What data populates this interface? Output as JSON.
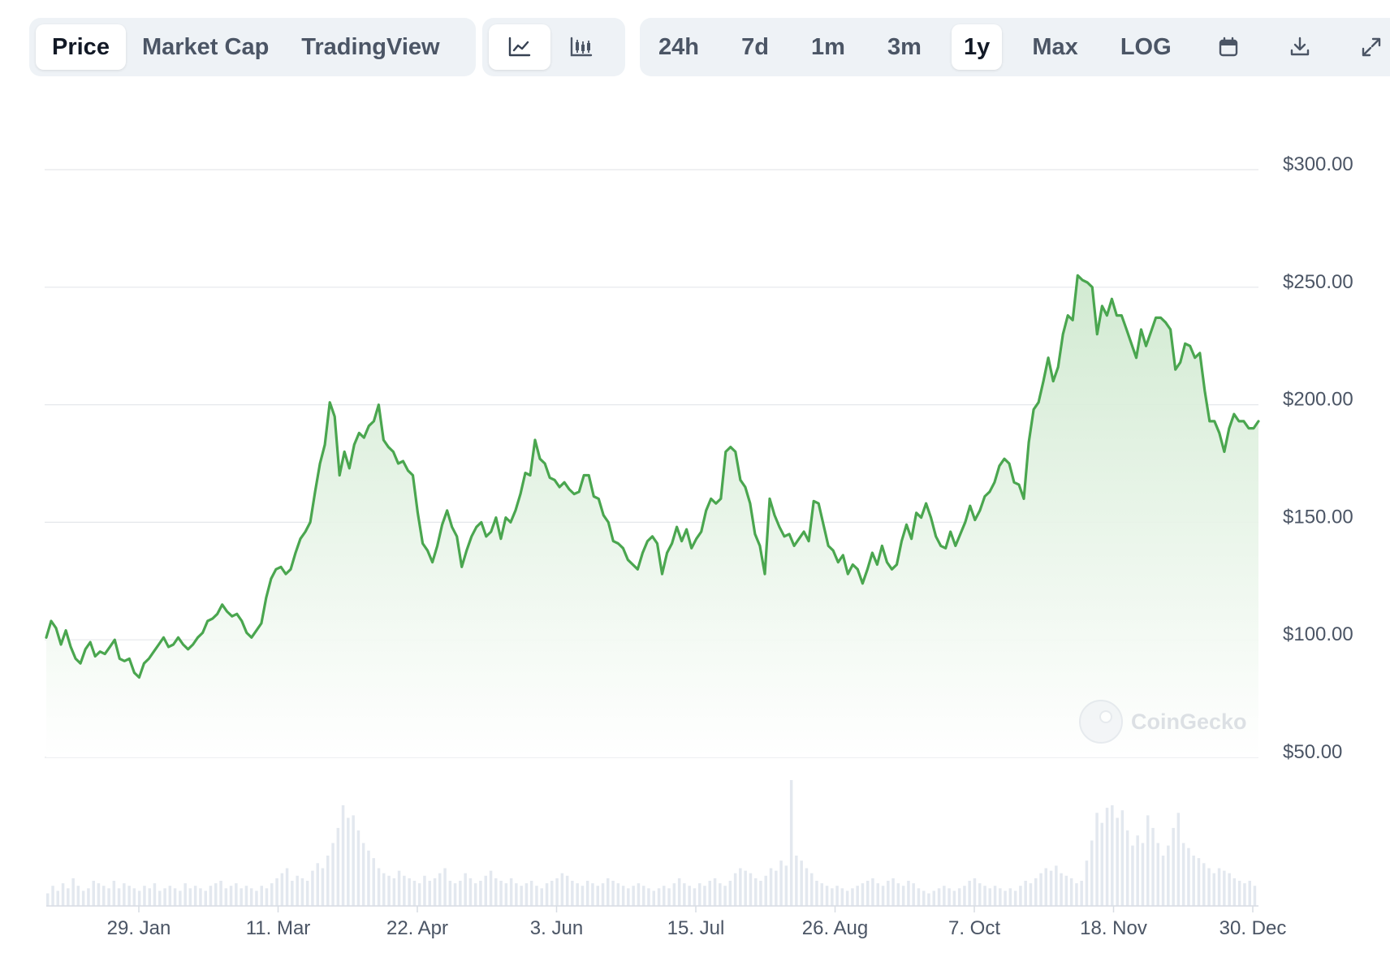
{
  "toolbar": {
    "view_tabs": [
      "Price",
      "Market Cap",
      "TradingView"
    ],
    "active_view": "Price",
    "chart_type_icons": [
      "line-chart-icon",
      "candlestick-chart-icon"
    ],
    "active_chart_type": "line-chart-icon",
    "ranges": [
      "24h",
      "7d",
      "1m",
      "3m",
      "1y",
      "Max",
      "LOG"
    ],
    "active_range": "1y",
    "action_icons": [
      "calendar-icon",
      "download-icon",
      "fullscreen-icon"
    ]
  },
  "watermark": "CoinGecko",
  "colors": {
    "line": "#4aa64f",
    "fill": "#d6eed6",
    "volume": "#e3e8ef",
    "grid": "#e5e7eb",
    "axis_text": "#4b5565"
  },
  "chart_data": {
    "type": "area",
    "title": "",
    "xlabel": "",
    "ylabel": "",
    "y_tick_labels": [
      "$300.00",
      "$250.00",
      "$200.00",
      "$150.00",
      "$100.00",
      "$50.00"
    ],
    "y_ticks": [
      300,
      250,
      200,
      150,
      100,
      50
    ],
    "ylim": [
      50,
      300
    ],
    "x_tick_labels": [
      "29. Jan",
      "11. Mar",
      "22. Apr",
      "3. Jun",
      "15. Jul",
      "26. Aug",
      "7. Oct",
      "18. Nov",
      "30. Dec"
    ],
    "x_range": [
      "2024-01-01",
      "2024-12-31"
    ],
    "grid": true,
    "series": [
      {
        "values": [
          101,
          108,
          105,
          98,
          104,
          97,
          92,
          90,
          96,
          99,
          93,
          95,
          94,
          97,
          100,
          92,
          91,
          92,
          86,
          84,
          90,
          92,
          95,
          98,
          101,
          97,
          98,
          101,
          98,
          96,
          98,
          101,
          103,
          108,
          109,
          111,
          115,
          112,
          110,
          111,
          108,
          103,
          101,
          104,
          107,
          118,
          126,
          130,
          131,
          128,
          130,
          137,
          143,
          146,
          150,
          163,
          175,
          183,
          201,
          195,
          170,
          180,
          173,
          183,
          188,
          186,
          191,
          193,
          200,
          185,
          182,
          180,
          175,
          176,
          172,
          170,
          154,
          141,
          138,
          133,
          140,
          149,
          155,
          148,
          144,
          131,
          138,
          144,
          148,
          150,
          144,
          146,
          152,
          143,
          152,
          150,
          155,
          162,
          171,
          170,
          185,
          177,
          175,
          169,
          168,
          165,
          167,
          164,
          162,
          163,
          170,
          170,
          161,
          160,
          153,
          150,
          142,
          141,
          139,
          134,
          132,
          130,
          137,
          142,
          144,
          141,
          128,
          137,
          141,
          148,
          142,
          147,
          139,
          143,
          146,
          155,
          160,
          158,
          160,
          180,
          182,
          180,
          168,
          165,
          158,
          145,
          140,
          128,
          160,
          153,
          148,
          144,
          145,
          140,
          143,
          146,
          142,
          159,
          158,
          149,
          140,
          138,
          133,
          136,
          128,
          132,
          130,
          124,
          130,
          137,
          132,
          140,
          133,
          130,
          132,
          142,
          149,
          143,
          154,
          152,
          158,
          152,
          144,
          140,
          139,
          146,
          140,
          145,
          150,
          157,
          151,
          155,
          161,
          163,
          167,
          174,
          177,
          175,
          167,
          166,
          160,
          184,
          198,
          201,
          210,
          220,
          210,
          216,
          230,
          238,
          236,
          255,
          253,
          252,
          250,
          230,
          242,
          238,
          245,
          238,
          238,
          232,
          226,
          220,
          232,
          225,
          231,
          237,
          237,
          235,
          232,
          215,
          218,
          226,
          225,
          220,
          222,
          206,
          193,
          193,
          188,
          180,
          190,
          196,
          193,
          193,
          190,
          190,
          193
        ]
      }
    ],
    "volume": [
      0.1,
      0.16,
      0.12,
      0.18,
      0.14,
      0.22,
      0.16,
      0.12,
      0.14,
      0.2,
      0.18,
      0.16,
      0.14,
      0.2,
      0.14,
      0.18,
      0.16,
      0.14,
      0.12,
      0.16,
      0.14,
      0.18,
      0.12,
      0.14,
      0.16,
      0.14,
      0.12,
      0.18,
      0.14,
      0.16,
      0.14,
      0.12,
      0.16,
      0.18,
      0.2,
      0.14,
      0.16,
      0.18,
      0.14,
      0.16,
      0.14,
      0.12,
      0.16,
      0.14,
      0.18,
      0.22,
      0.26,
      0.3,
      0.2,
      0.24,
      0.22,
      0.2,
      0.28,
      0.34,
      0.3,
      0.4,
      0.5,
      0.62,
      0.8,
      0.7,
      0.72,
      0.6,
      0.5,
      0.44,
      0.38,
      0.3,
      0.26,
      0.24,
      0.22,
      0.28,
      0.24,
      0.22,
      0.2,
      0.18,
      0.24,
      0.2,
      0.22,
      0.26,
      0.3,
      0.2,
      0.18,
      0.2,
      0.26,
      0.22,
      0.18,
      0.2,
      0.24,
      0.28,
      0.22,
      0.2,
      0.18,
      0.22,
      0.18,
      0.16,
      0.18,
      0.2,
      0.16,
      0.14,
      0.18,
      0.2,
      0.22,
      0.26,
      0.24,
      0.2,
      0.18,
      0.16,
      0.2,
      0.18,
      0.16,
      0.18,
      0.22,
      0.2,
      0.18,
      0.16,
      0.14,
      0.16,
      0.18,
      0.16,
      0.14,
      0.12,
      0.14,
      0.16,
      0.14,
      0.18,
      0.22,
      0.18,
      0.16,
      0.14,
      0.18,
      0.16,
      0.2,
      0.22,
      0.18,
      0.16,
      0.2,
      0.26,
      0.3,
      0.28,
      0.26,
      0.22,
      0.2,
      0.24,
      0.3,
      0.28,
      0.36,
      0.32,
      1.0,
      0.4,
      0.36,
      0.3,
      0.26,
      0.2,
      0.18,
      0.16,
      0.14,
      0.16,
      0.14,
      0.12,
      0.14,
      0.16,
      0.18,
      0.2,
      0.22,
      0.18,
      0.16,
      0.2,
      0.22,
      0.18,
      0.16,
      0.2,
      0.18,
      0.14,
      0.12,
      0.1,
      0.12,
      0.14,
      0.16,
      0.14,
      0.12,
      0.14,
      0.16,
      0.2,
      0.22,
      0.18,
      0.16,
      0.14,
      0.16,
      0.14,
      0.12,
      0.14,
      0.12,
      0.16,
      0.2,
      0.18,
      0.22,
      0.26,
      0.3,
      0.28,
      0.32,
      0.26,
      0.24,
      0.22,
      0.18,
      0.2,
      0.36,
      0.52,
      0.74,
      0.66,
      0.78,
      0.8,
      0.7,
      0.76,
      0.6,
      0.48,
      0.56,
      0.5,
      0.72,
      0.62,
      0.5,
      0.4,
      0.48,
      0.62,
      0.74,
      0.5,
      0.46,
      0.4,
      0.38,
      0.34,
      0.3,
      0.26,
      0.3,
      0.28,
      0.26,
      0.22,
      0.2,
      0.18,
      0.2,
      0.16
    ]
  }
}
